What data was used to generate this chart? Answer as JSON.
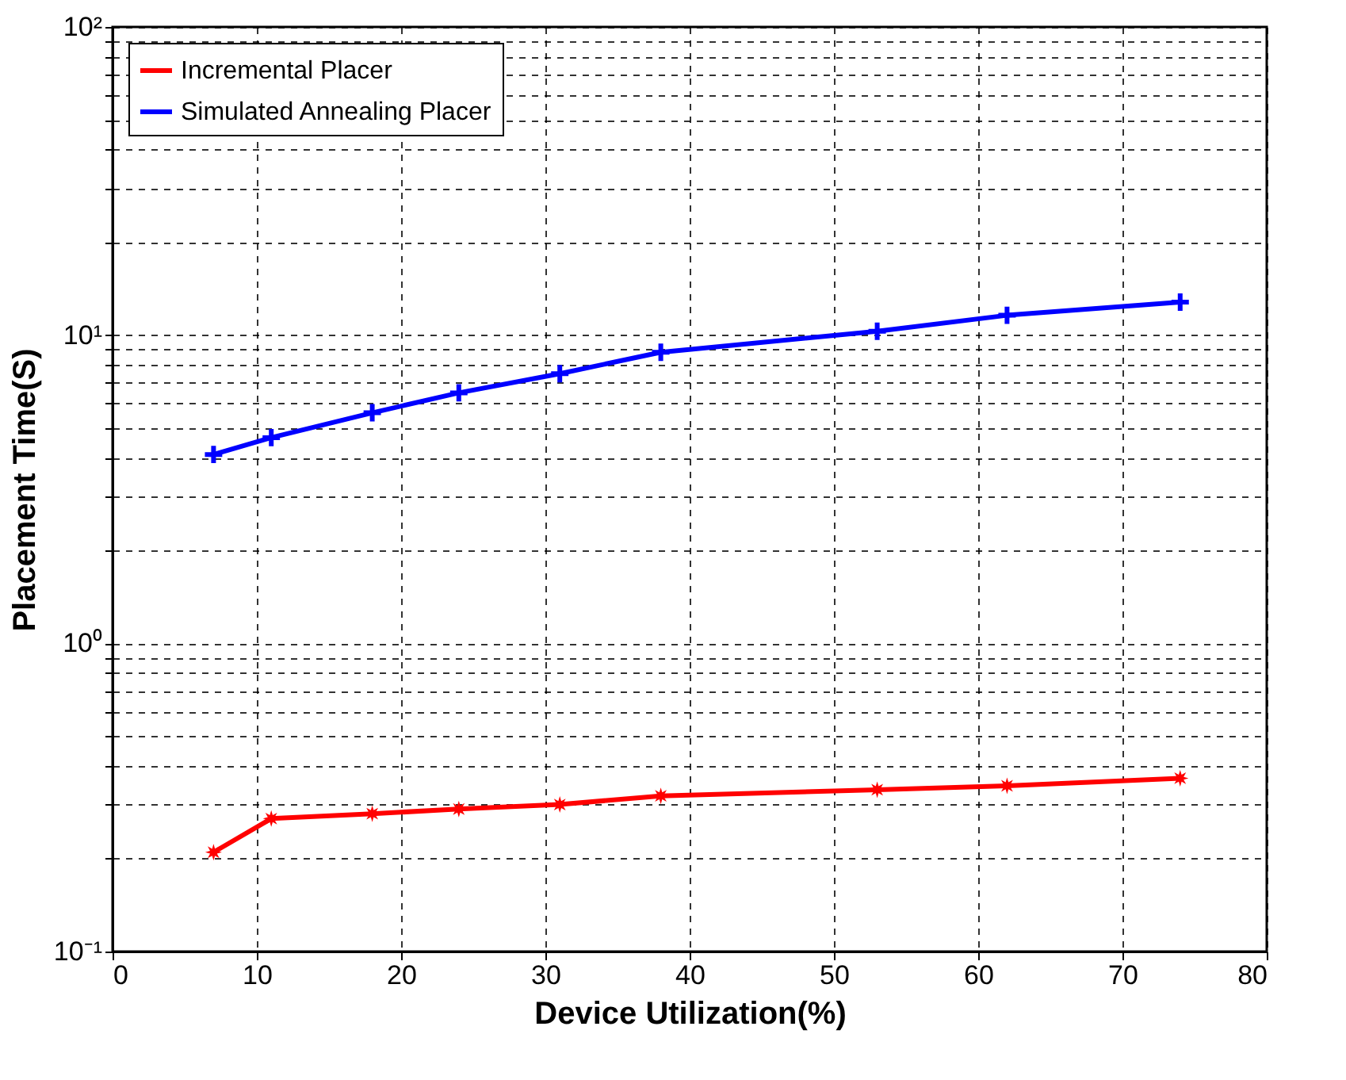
{
  "chart_data": {
    "type": "line",
    "xlabel": "Device Utilization(%)",
    "ylabel": "Placement Time(S)",
    "x": [
      7,
      11,
      18,
      24,
      31,
      38,
      53,
      62,
      74
    ],
    "series": [
      {
        "name": "Incremental Placer",
        "color": "#ff0000",
        "marker": "star",
        "values": [
          0.21,
          0.27,
          0.28,
          0.29,
          0.3,
          0.32,
          0.335,
          0.345,
          0.365
        ]
      },
      {
        "name": "Simulated Annealing Placer",
        "color": "#0000ff",
        "marker": "cross",
        "values": [
          4.1,
          4.65,
          5.6,
          6.5,
          7.5,
          8.8,
          10.3,
          11.6,
          12.8
        ]
      }
    ],
    "log": "y",
    "xlim": [
      0,
      80
    ],
    "xticks": [
      0,
      10,
      20,
      30,
      40,
      50,
      60,
      70,
      80
    ],
    "ylim": [
      0.1,
      100
    ],
    "yticks": [
      {
        "value": 0.1,
        "label": "10⁻¹"
      },
      {
        "value": 0.2,
        "label": null
      },
      {
        "value": 0.3,
        "label": null
      },
      {
        "value": 0.4,
        "label": null
      },
      {
        "value": 0.5,
        "label": null
      },
      {
        "value": 0.6,
        "label": null
      },
      {
        "value": 0.7,
        "label": null
      },
      {
        "value": 0.8,
        "label": null
      },
      {
        "value": 0.9,
        "label": null
      },
      {
        "value": 1,
        "label": "10⁰"
      },
      {
        "value": 2,
        "label": null
      },
      {
        "value": 3,
        "label": null
      },
      {
        "value": 4,
        "label": null
      },
      {
        "value": 5,
        "label": null
      },
      {
        "value": 6,
        "label": null
      },
      {
        "value": 7,
        "label": null
      },
      {
        "value": 8,
        "label": null
      },
      {
        "value": 9,
        "label": null
      },
      {
        "value": 10,
        "label": "10¹"
      },
      {
        "value": 20,
        "label": null
      },
      {
        "value": 30,
        "label": null
      },
      {
        "value": 40,
        "label": null
      },
      {
        "value": 50,
        "label": null
      },
      {
        "value": 60,
        "label": null
      },
      {
        "value": 70,
        "label": null
      },
      {
        "value": 80,
        "label": null
      },
      {
        "value": 90,
        "label": null
      },
      {
        "value": 100,
        "label": "10²"
      }
    ],
    "grid": true,
    "legend": "top left",
    "line_style": "solid"
  }
}
